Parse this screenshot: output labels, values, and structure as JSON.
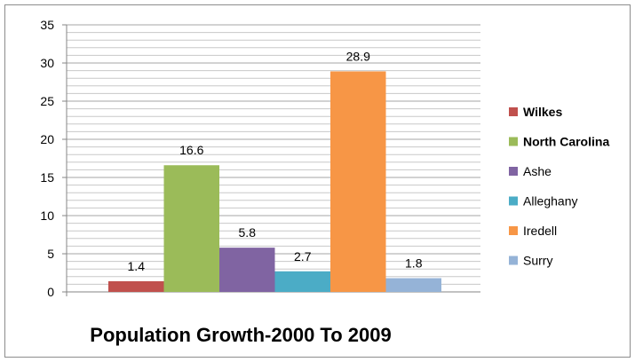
{
  "chart_data": {
    "type": "bar",
    "title": "Population Growth-2000 To 2009",
    "ylim": [
      0,
      35
    ],
    "yticks": [
      0,
      5,
      10,
      15,
      20,
      25,
      30,
      35
    ],
    "grid": true,
    "legend_position": "right",
    "series": [
      {
        "name": "Wilkes",
        "value": 1.4,
        "label": "1.4",
        "color": "#C0504D",
        "bold": true
      },
      {
        "name": "North Carolina",
        "value": 16.6,
        "label": "16.6",
        "color": "#9BBB59",
        "bold": true
      },
      {
        "name": "Ashe",
        "value": 5.8,
        "label": "5.8",
        "color": "#8064A2",
        "bold": false
      },
      {
        "name": "Alleghany",
        "value": 2.7,
        "label": "2.7",
        "color": "#4BACC6",
        "bold": false
      },
      {
        "name": "Iredell",
        "value": 28.9,
        "label": "28.9",
        "color": "#F79646",
        "bold": false
      },
      {
        "name": "Surry",
        "value": 1.8,
        "label": "1.8",
        "color": "#95B3D7",
        "bold": false
      }
    ]
  }
}
